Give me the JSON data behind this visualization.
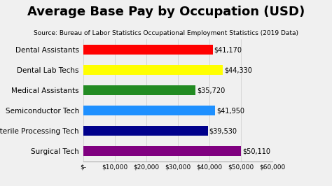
{
  "title": "Average Base Pay by Occupation (USD)",
  "subtitle": "Source: Bureau of Labor Statistics Occupational Employment Statistics (2019 Data)",
  "categories": [
    "Dental Assistants",
    "Dental Lab Techs",
    "Medical Assistants",
    "Semiconductor Tech",
    "Sterile Processing Tech",
    "Surgical Tech"
  ],
  "values": [
    41170,
    44330,
    35720,
    41950,
    39530,
    50110
  ],
  "bar_colors": [
    "#ff0000",
    "#ffff00",
    "#228b22",
    "#1e90ff",
    "#00008b",
    "#800080"
  ],
  "value_labels": [
    "$41,170",
    "$44,330",
    "$35,720",
    "$41,950",
    "$39,530",
    "$50,110"
  ],
  "xlim": [
    0,
    60000
  ],
  "xtick_values": [
    0,
    10000,
    20000,
    30000,
    40000,
    50000,
    60000
  ],
  "xtick_labels": [
    "$-",
    "$10,000",
    "$20,000",
    "$30,000",
    "$40,000",
    "$50,000",
    "$60,000"
  ],
  "background_color": "#f0f0f0",
  "title_fontsize": 13,
  "subtitle_fontsize": 6.5,
  "label_fontsize": 7.5,
  "tick_fontsize": 6.5,
  "value_label_fontsize": 7,
  "bar_height": 0.5
}
